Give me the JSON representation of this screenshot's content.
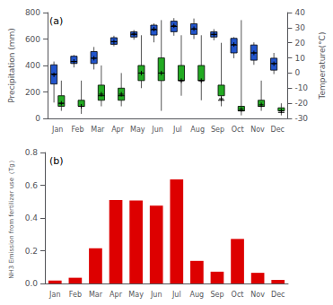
{
  "chart_data": [
    {
      "type": "boxplot",
      "annotation": "(a)",
      "categories": [
        "Jan",
        "Feb",
        "Mar",
        "Apr",
        "May",
        "Jun",
        "Jul",
        "Aug",
        "Sep",
        "Oct",
        "Nov",
        "Dec"
      ],
      "ylabel": "Precipitation (mm)",
      "y2label": "Temperature(°C)",
      "ylim": [
        0,
        800
      ],
      "yticks": [
        0,
        200,
        400,
        600,
        800
      ],
      "y2lim": [
        -30,
        40
      ],
      "y2ticks": [
        -30,
        -20,
        -10,
        0,
        10,
        20,
        30,
        40
      ],
      "grid": false,
      "series": [
        {
          "color": "#2255cc",
          "q1": [
            260,
            415,
            415,
            560,
            615,
            630,
            655,
            635,
            615,
            495,
            440,
            365
          ],
          "median": [
            335,
            430,
            455,
            580,
            635,
            670,
            695,
            675,
            635,
            555,
            495,
            415
          ],
          "q3": [
            405,
            470,
            505,
            610,
            655,
            705,
            735,
            715,
            655,
            605,
            555,
            455
          ],
          "mean": [
            330,
            430,
            455,
            580,
            638,
            675,
            700,
            678,
            635,
            558,
            495,
            413
          ],
          "whislo": [
            120,
            385,
            370,
            545,
            595,
            575,
            625,
            600,
            590,
            455,
            405,
            335
          ],
          "whishi": [
            430,
            480,
            540,
            625,
            668,
            718,
            758,
            755,
            675,
            615,
            575,
            495
          ]
        },
        {
          "color": "#22aa22",
          "axis": "y2",
          "q1": [
            -22,
            -22,
            -18,
            -18,
            -5,
            -5,
            -5,
            -5,
            -15,
            -25,
            -22,
            -25
          ],
          "median": [
            -20,
            -22,
            -15,
            -15,
            0,
            0,
            -5,
            -5,
            -18,
            -25,
            -22,
            -26
          ],
          "q3": [
            -15,
            -18,
            -8,
            -10,
            5,
            10,
            5,
            5,
            -8,
            -22,
            -18,
            -23
          ],
          "mean": [
            -20,
            -22,
            -14,
            -14,
            0,
            0,
            -5,
            -5,
            -17,
            -24,
            -21,
            -25
          ],
          "whislo": [
            -25,
            -27,
            -22,
            -22,
            -10,
            -25,
            -15,
            -18,
            -22,
            -28,
            -25,
            -28
          ],
          "whishi": [
            -5,
            -5,
            5,
            0,
            25,
            35,
            25,
            25,
            20,
            35,
            -5,
            -20
          ]
        }
      ]
    },
    {
      "type": "bar",
      "annotation": "(b)",
      "categories": [
        "Jan",
        "Feb",
        "Mar",
        "Apr",
        "May",
        "Jun",
        "Jul",
        "Aug",
        "Sep",
        "Oct",
        "Nov",
        "Dec"
      ],
      "values": [
        0.018,
        0.035,
        0.215,
        0.51,
        0.507,
        0.475,
        0.635,
        0.138,
        0.072,
        0.272,
        0.065,
        0.022
      ],
      "color": "#dd0000",
      "ylabel": "NH3 Emission from fertilizer use（Tg）",
      "ylim": [
        0,
        0.8
      ],
      "yticks": [
        {
          "value": 0,
          "label": "0.0"
        },
        0.2,
        0.4,
        0.6,
        0.8
      ],
      "grid": false
    }
  ]
}
